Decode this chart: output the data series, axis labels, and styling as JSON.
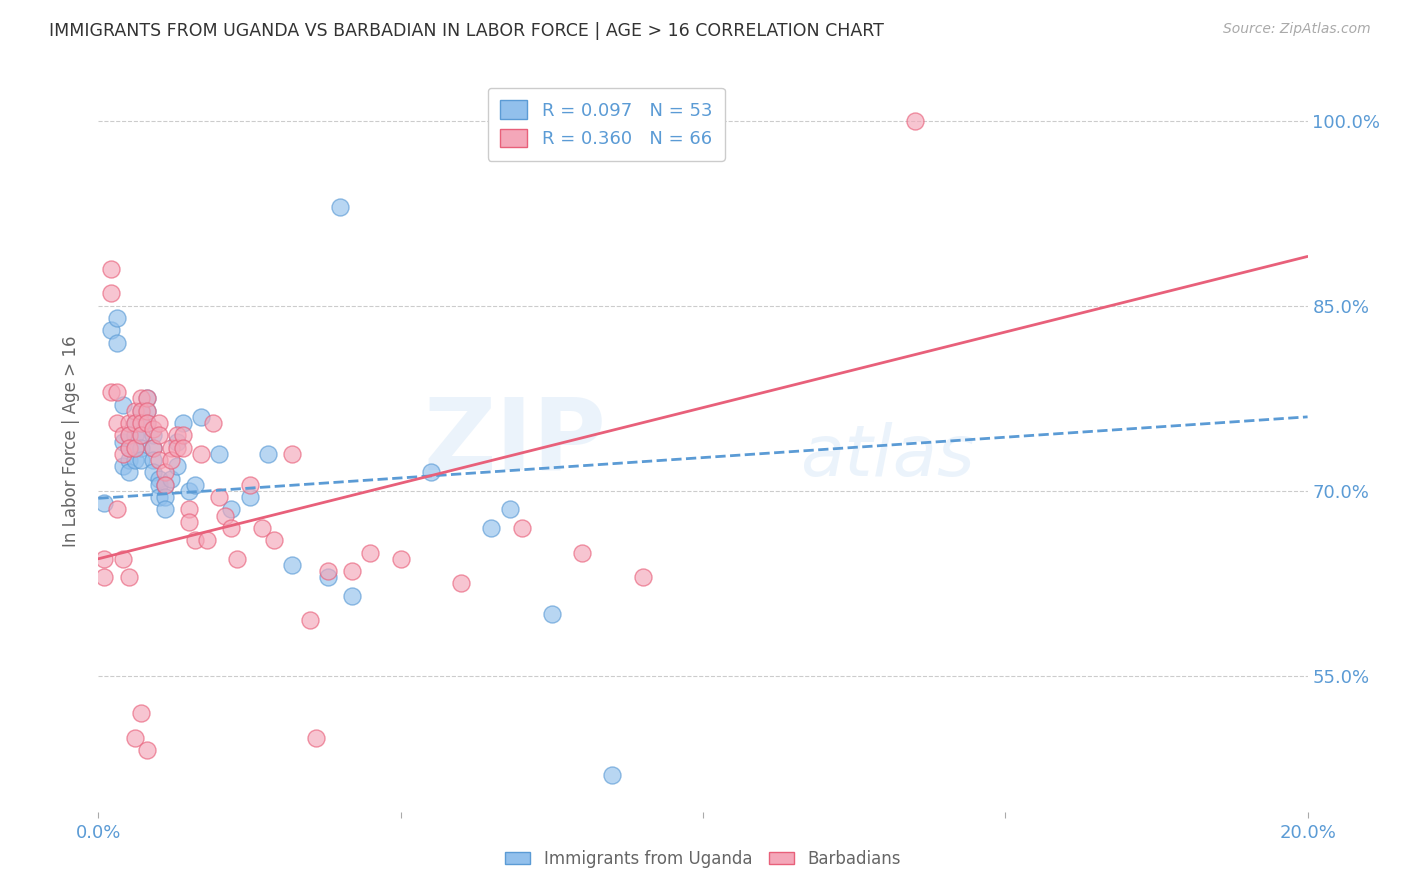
{
  "title": "IMMIGRANTS FROM UGANDA VS BARBADIAN IN LABOR FORCE | AGE > 16 CORRELATION CHART",
  "source": "Source: ZipAtlas.com",
  "ylabel": "In Labor Force | Age > 16",
  "ytick_labels": [
    "55.0%",
    "70.0%",
    "85.0%",
    "100.0%"
  ],
  "ytick_values": [
    0.55,
    0.7,
    0.85,
    1.0
  ],
  "xlim": [
    0.0,
    0.2
  ],
  "ylim": [
    0.44,
    1.04
  ],
  "legend_r1": "R = 0.097",
  "legend_n1": "N = 53",
  "legend_r2": "R = 0.360",
  "legend_n2": "N = 66",
  "color_uganda": "#92C0EC",
  "color_barbadian": "#F4A7B9",
  "trendline_color_uganda": "#5B9BD5",
  "trendline_color_barbadian": "#E8607A",
  "watermark_zip": "ZIP",
  "watermark_atlas": "atlas",
  "background_color": "#ffffff",
  "grid_color": "#cccccc",
  "axis_label_color": "#5B9BD5",
  "title_color": "#333333",
  "uganda_scatter_x": [
    0.001,
    0.002,
    0.003,
    0.003,
    0.004,
    0.004,
    0.004,
    0.005,
    0.005,
    0.005,
    0.005,
    0.006,
    0.006,
    0.006,
    0.006,
    0.007,
    0.007,
    0.007,
    0.007,
    0.007,
    0.008,
    0.008,
    0.008,
    0.009,
    0.009,
    0.009,
    0.009,
    0.01,
    0.01,
    0.01,
    0.011,
    0.011,
    0.011,
    0.012,
    0.013,
    0.013,
    0.014,
    0.015,
    0.016,
    0.017,
    0.02,
    0.022,
    0.025,
    0.028,
    0.032,
    0.038,
    0.042,
    0.055,
    0.065,
    0.075,
    0.085,
    0.04,
    0.068
  ],
  "uganda_scatter_y": [
    0.69,
    0.83,
    0.84,
    0.82,
    0.77,
    0.74,
    0.72,
    0.745,
    0.735,
    0.725,
    0.715,
    0.755,
    0.745,
    0.735,
    0.725,
    0.765,
    0.755,
    0.745,
    0.735,
    0.725,
    0.775,
    0.765,
    0.755,
    0.745,
    0.735,
    0.725,
    0.715,
    0.71,
    0.705,
    0.695,
    0.705,
    0.695,
    0.685,
    0.71,
    0.74,
    0.72,
    0.755,
    0.7,
    0.705,
    0.76,
    0.73,
    0.685,
    0.695,
    0.73,
    0.64,
    0.63,
    0.615,
    0.715,
    0.67,
    0.6,
    0.47,
    0.93,
    0.685
  ],
  "barbadian_scatter_x": [
    0.001,
    0.001,
    0.002,
    0.002,
    0.002,
    0.003,
    0.003,
    0.004,
    0.004,
    0.005,
    0.005,
    0.005,
    0.006,
    0.006,
    0.006,
    0.007,
    0.007,
    0.007,
    0.007,
    0.008,
    0.008,
    0.008,
    0.009,
    0.009,
    0.01,
    0.01,
    0.01,
    0.011,
    0.011,
    0.012,
    0.012,
    0.013,
    0.013,
    0.014,
    0.014,
    0.015,
    0.015,
    0.016,
    0.017,
    0.018,
    0.019,
    0.02,
    0.021,
    0.022,
    0.023,
    0.025,
    0.027,
    0.029,
    0.032,
    0.035,
    0.038,
    0.042,
    0.045,
    0.05,
    0.06,
    0.07,
    0.08,
    0.09,
    0.003,
    0.004,
    0.005,
    0.006,
    0.007,
    0.008,
    0.036,
    0.135
  ],
  "barbadian_scatter_y": [
    0.645,
    0.63,
    0.88,
    0.86,
    0.78,
    0.78,
    0.755,
    0.745,
    0.73,
    0.755,
    0.745,
    0.735,
    0.765,
    0.755,
    0.735,
    0.775,
    0.765,
    0.755,
    0.745,
    0.775,
    0.765,
    0.755,
    0.75,
    0.735,
    0.755,
    0.745,
    0.725,
    0.715,
    0.705,
    0.735,
    0.725,
    0.745,
    0.735,
    0.745,
    0.735,
    0.685,
    0.675,
    0.66,
    0.73,
    0.66,
    0.755,
    0.695,
    0.68,
    0.67,
    0.645,
    0.705,
    0.67,
    0.66,
    0.73,
    0.595,
    0.635,
    0.635,
    0.65,
    0.645,
    0.625,
    0.67,
    0.65,
    0.63,
    0.685,
    0.645,
    0.63,
    0.5,
    0.52,
    0.49,
    0.5,
    1.0
  ],
  "trendline_uganda_x0": 0.0,
  "trendline_uganda_y0": 0.694,
  "trendline_uganda_x1": 0.2,
  "trendline_uganda_y1": 0.76,
  "trendline_barbadian_x0": 0.0,
  "trendline_barbadian_y0": 0.645,
  "trendline_barbadian_x1": 0.2,
  "trendline_barbadian_y1": 0.89
}
